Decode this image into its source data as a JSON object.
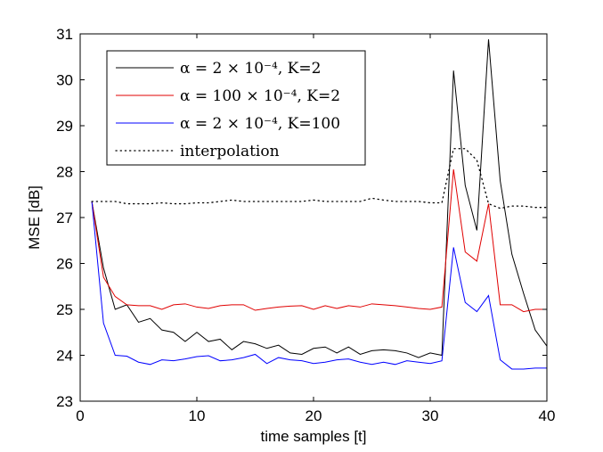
{
  "chart_data": {
    "type": "line",
    "xlabel": "time samples [t]",
    "ylabel": "MSE [dB]",
    "xlim": [
      0,
      40
    ],
    "ylim": [
      23,
      31
    ],
    "xticks": [
      "0",
      "10",
      "20",
      "30",
      "40"
    ],
    "yticks": [
      "23",
      "24",
      "25",
      "26",
      "27",
      "28",
      "29",
      "30",
      "31"
    ],
    "grid": false,
    "legend_position": "top-left",
    "x": [
      1,
      2,
      3,
      4,
      5,
      6,
      7,
      8,
      9,
      10,
      11,
      12,
      13,
      14,
      15,
      16,
      17,
      18,
      19,
      20,
      21,
      22,
      23,
      24,
      25,
      26,
      27,
      28,
      29,
      30,
      31,
      32,
      33,
      34,
      35,
      36,
      37,
      38,
      39,
      40
    ],
    "series": [
      {
        "name": "α = 2 × 10⁻⁴, K=2",
        "color": "#000000",
        "style": "solid",
        "values": [
          27.35,
          25.9,
          25.0,
          25.1,
          24.72,
          24.8,
          24.55,
          24.5,
          24.3,
          24.5,
          24.3,
          24.35,
          24.12,
          24.3,
          24.25,
          24.15,
          24.22,
          24.05,
          24.02,
          24.15,
          24.18,
          24.05,
          24.18,
          24.02,
          24.1,
          24.12,
          24.1,
          24.05,
          23.95,
          24.05,
          24.0,
          30.2,
          27.7,
          26.72,
          30.88,
          27.8,
          26.2,
          25.35,
          24.55,
          24.2
        ]
      },
      {
        "name": "α = 100 × 10⁻⁴, K=2",
        "color": "#e00000",
        "style": "solid",
        "values": [
          27.35,
          25.7,
          25.28,
          25.1,
          25.08,
          25.08,
          25.0,
          25.1,
          25.12,
          25.05,
          25.02,
          25.08,
          25.1,
          25.1,
          24.98,
          25.02,
          25.05,
          25.07,
          25.08,
          25.0,
          25.08,
          25.02,
          25.08,
          25.05,
          25.12,
          25.1,
          25.08,
          25.05,
          25.02,
          25.0,
          25.05,
          28.05,
          26.25,
          26.05,
          27.3,
          25.1,
          25.1,
          24.95,
          25.0,
          25.0
        ]
      },
      {
        "name": "α = 2 × 10⁻⁴, K=100",
        "color": "#0000ff",
        "style": "solid",
        "values": [
          27.35,
          24.7,
          24.0,
          23.98,
          23.85,
          23.8,
          23.9,
          23.88,
          23.92,
          23.97,
          23.99,
          23.88,
          23.9,
          23.95,
          24.02,
          23.82,
          23.95,
          23.9,
          23.88,
          23.82,
          23.85,
          23.9,
          23.92,
          23.85,
          23.8,
          23.85,
          23.8,
          23.88,
          23.85,
          23.82,
          23.88,
          26.35,
          25.15,
          24.95,
          25.3,
          23.9,
          23.7,
          23.7,
          23.72,
          23.72
        ]
      },
      {
        "name": "interpolation",
        "color": "#000000",
        "style": "dotted",
        "values": [
          27.35,
          27.35,
          27.35,
          27.3,
          27.3,
          27.3,
          27.32,
          27.3,
          27.3,
          27.32,
          27.32,
          27.35,
          27.38,
          27.35,
          27.35,
          27.35,
          27.35,
          27.35,
          27.35,
          27.38,
          27.35,
          27.35,
          27.35,
          27.35,
          27.42,
          27.38,
          27.35,
          27.35,
          27.35,
          27.32,
          27.32,
          28.5,
          28.5,
          28.25,
          27.3,
          27.2,
          27.25,
          27.25,
          27.22,
          27.22
        ]
      }
    ]
  }
}
